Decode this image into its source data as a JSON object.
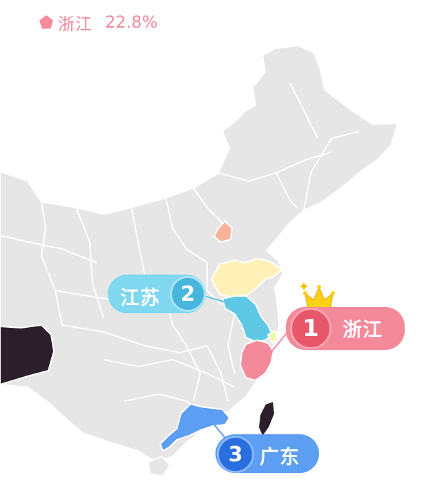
{
  "legend": {
    "province": "浙江",
    "value": "22.8%",
    "color": "#f48a9a"
  },
  "ranking": [
    {
      "rank": "1",
      "province": "浙江",
      "color": "#f4899a"
    },
    {
      "rank": "2",
      "province": "江苏",
      "color": "#7fd7f0"
    },
    {
      "rank": "3",
      "province": "广东",
      "color": "#5b9ef2"
    }
  ],
  "colors": {
    "base": "#e6e6e6",
    "border": "#ffffff",
    "zhejiang": "#f4899a",
    "jiangsu": "#5ec8e5",
    "shandong": "#fff1b8",
    "beijing": "#f7b49a",
    "shanghai": "#e8ffa8",
    "guangdong": "#5b9ef2",
    "taiwan": "#2c1f2b",
    "tibet": "#2c1f2b"
  }
}
